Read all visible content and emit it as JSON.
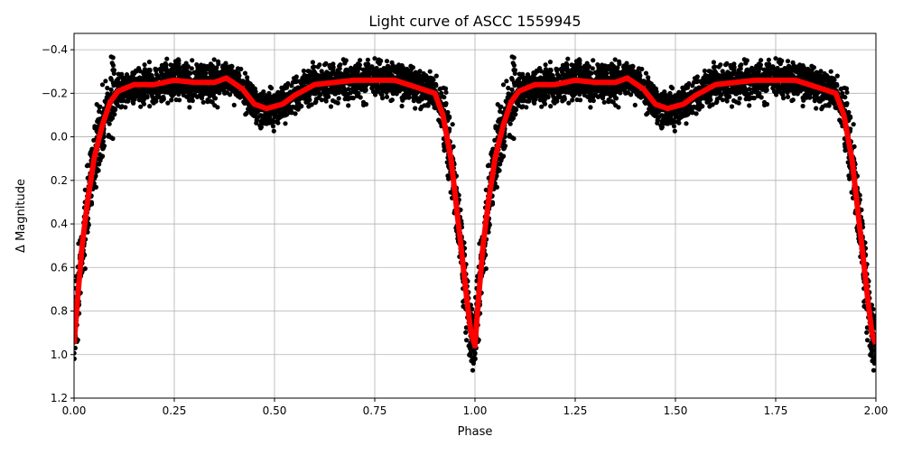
{
  "chart_data": {
    "type": "scatter",
    "title": "Light curve of ASCC 1559945",
    "xlabel": "Phase",
    "ylabel": "Δ Magnitude",
    "xlim": [
      0,
      2
    ],
    "ylim": [
      -0.475,
      1.2
    ],
    "y_inverted": true,
    "grid": true,
    "xticks": [
      "0.00",
      "0.25",
      "0.50",
      "0.75",
      "1.00",
      "1.25",
      "1.50",
      "1.75",
      "2.00"
    ],
    "xtick_values": [
      0,
      0.25,
      0.5,
      0.75,
      1,
      1.25,
      1.5,
      1.75,
      2
    ],
    "yticks": [
      "−0.4",
      "−0.2",
      "0.0",
      "0.2",
      "0.4",
      "0.6",
      "0.8",
      "1.0",
      "1.2"
    ],
    "ytick_values": [
      -0.4,
      -0.2,
      0,
      0.2,
      0.4,
      0.6,
      0.8,
      1.0,
      1.2
    ],
    "series": [
      {
        "kind": "scatter",
        "color": "#000000"
      },
      {
        "kind": "line",
        "color": "#ff0000",
        "phase": [
          0,
          0.01,
          0.02,
          0.035,
          0.05,
          0.07,
          0.09,
          0.11,
          0.15,
          0.2,
          0.25,
          0.3,
          0.35,
          0.38,
          0.42,
          0.45,
          0.48,
          0.52,
          0.55,
          0.6,
          0.65,
          0.7,
          0.75,
          0.8,
          0.85,
          0.9,
          0.92,
          0.94,
          0.96,
          0.98,
          0.99,
          1.0
        ],
        "values": [
          0.95,
          0.72,
          0.5,
          0.28,
          0.1,
          -0.05,
          -0.16,
          -0.21,
          -0.24,
          -0.24,
          -0.26,
          -0.25,
          -0.25,
          -0.27,
          -0.22,
          -0.15,
          -0.13,
          -0.15,
          -0.19,
          -0.24,
          -0.25,
          -0.26,
          -0.26,
          -0.26,
          -0.23,
          -0.2,
          -0.1,
          0.1,
          0.42,
          0.75,
          0.9,
          0.96
        ]
      }
    ]
  }
}
